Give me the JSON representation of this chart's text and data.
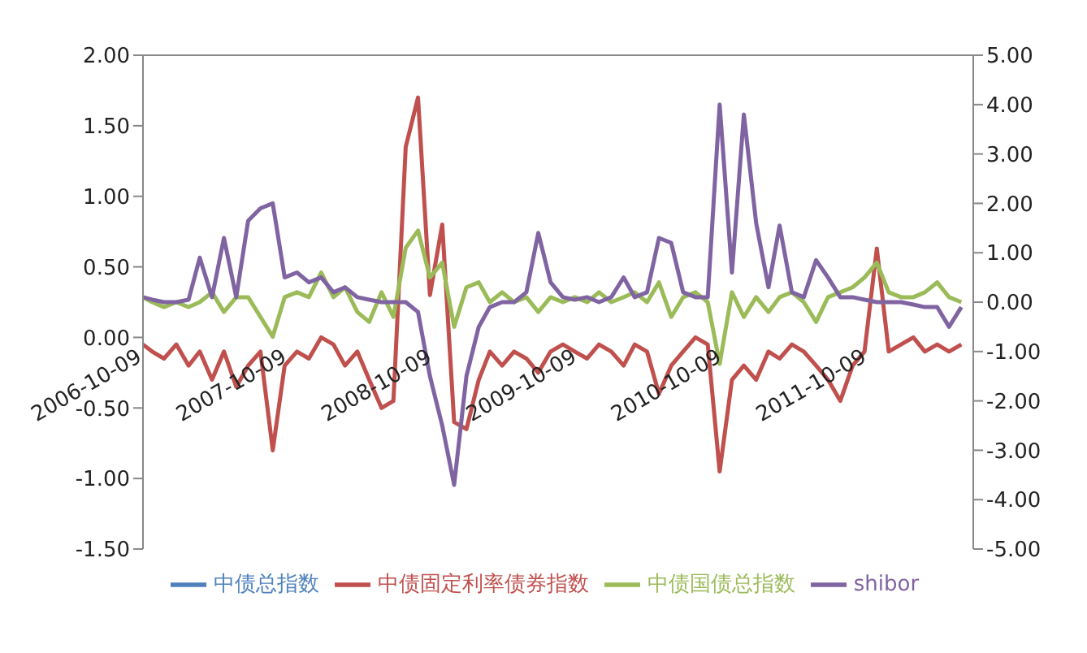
{
  "chart_data": {
    "type": "line",
    "x": [
      "2006-10-09",
      "2006-11",
      "2006-12",
      "2007-01",
      "2007-02",
      "2007-03",
      "2007-04",
      "2007-05",
      "2007-06",
      "2007-07",
      "2007-08",
      "2007-09",
      "2007-10",
      "2007-11",
      "2007-12",
      "2008-01",
      "2008-02",
      "2008-03",
      "2008-04",
      "2008-05",
      "2008-06",
      "2008-07",
      "2008-08",
      "2008-09",
      "2008-10",
      "2008-11",
      "2008-12",
      "2009-01",
      "2009-02",
      "2009-03",
      "2009-04",
      "2009-05",
      "2009-06",
      "2009-07",
      "2009-08",
      "2009-09",
      "2009-10",
      "2009-11",
      "2009-12",
      "2010-01",
      "2010-02",
      "2010-03",
      "2010-04",
      "2010-05",
      "2010-06",
      "2010-07",
      "2010-08",
      "2010-09",
      "2010-10",
      "2010-11",
      "2010-12",
      "2011-01",
      "2011-02",
      "2011-03",
      "2011-04",
      "2011-05",
      "2011-06",
      "2011-07",
      "2011-08",
      "2011-09",
      "2011-10",
      "2011-11",
      "2011-12",
      "2012-01",
      "2012-02",
      "2012-03",
      "2012-04",
      "2012-05",
      "2012-06"
    ],
    "series": [
      {
        "name": "中债总指数",
        "color": "#4f81bd",
        "values": [
          null,
          null,
          null,
          null,
          null,
          null,
          null,
          null,
          null,
          null,
          null,
          null,
          null,
          null,
          null,
          null,
          null,
          null,
          null,
          null,
          null,
          null,
          null,
          null,
          null,
          null,
          null,
          null,
          null,
          null,
          null,
          null,
          null,
          null,
          null,
          null,
          null,
          null,
          null,
          null,
          null,
          null,
          null,
          null,
          null,
          null,
          null,
          null,
          null,
          null,
          null,
          null,
          null,
          null,
          null,
          null,
          null,
          null,
          null,
          null,
          null,
          null,
          null,
          null,
          null,
          null,
          null,
          null,
          null
        ]
      },
      {
        "name": "中债固定利率债券指数",
        "color": "#c0504d",
        "values": [
          -0.05,
          -0.1,
          -0.15,
          -0.05,
          -0.2,
          -0.1,
          -0.3,
          -0.1,
          -0.35,
          -0.2,
          -0.1,
          -0.8,
          -0.2,
          -0.1,
          -0.15,
          0,
          -0.05,
          -0.2,
          -0.1,
          -0.3,
          -0.5,
          -0.45,
          1.35,
          1.7,
          0.3,
          0.8,
          -0.6,
          -0.65,
          -0.3,
          -0.1,
          -0.2,
          -0.1,
          -0.15,
          -0.25,
          -0.1,
          -0.05,
          -0.1,
          -0.15,
          -0.05,
          -0.1,
          -0.2,
          -0.05,
          -0.1,
          -0.4,
          -0.2,
          -0.1,
          0,
          -0.05,
          -0.95,
          -0.3,
          -0.2,
          -0.3,
          -0.1,
          -0.15,
          -0.05,
          -0.1,
          -0.2,
          -0.3,
          -0.45,
          -0.2,
          -0.1,
          0.63,
          -0.1,
          -0.05,
          0,
          -0.1,
          -0.05,
          -0.1,
          -0.05
        ]
      },
      {
        "name": "中债国债总指数",
        "color": "#9bbb59",
        "axis": "y2",
        "values": [
          0.1,
          0,
          -0.1,
          0,
          -0.1,
          0,
          0.2,
          -0.2,
          0.1,
          0.1,
          -0.3,
          -0.7,
          0.1,
          0.2,
          0.1,
          0.6,
          0.1,
          0.3,
          -0.2,
          -0.4,
          0.2,
          -0.3,
          1.1,
          1.45,
          0.5,
          0.8,
          -0.5,
          0.3,
          0.4,
          0,
          0.2,
          0,
          0.1,
          -0.2,
          0.1,
          0,
          0.1,
          0,
          0.2,
          0,
          0.1,
          0.2,
          0,
          0.4,
          -0.3,
          0.1,
          0.2,
          0,
          -1.25,
          0.2,
          -0.3,
          0.1,
          -0.2,
          0.1,
          0.2,
          0,
          -0.4,
          0.1,
          0.2,
          0.3,
          0.5,
          0.8,
          0.2,
          0.1,
          0.1,
          0.2,
          0.4,
          0.1,
          0
        ]
      },
      {
        "name": "shibor",
        "color": "#8064a2",
        "axis": "y2",
        "values": [
          0.1,
          0.05,
          0,
          0,
          0.05,
          0.9,
          0.1,
          1.3,
          0.1,
          1.65,
          1.9,
          2.0,
          0.5,
          0.6,
          0.4,
          0.5,
          0.2,
          0.3,
          0.1,
          0.05,
          0,
          0,
          0,
          -0.2,
          -1.5,
          -2.5,
          -3.7,
          -1.5,
          -0.5,
          -0.1,
          0,
          0,
          0.2,
          1.4,
          0.4,
          0.1,
          0.05,
          0.1,
          0,
          0.1,
          0.5,
          0.1,
          0.2,
          1.3,
          1.2,
          0.2,
          0.1,
          0.1,
          4.0,
          0.6,
          3.8,
          1.6,
          0.3,
          1.55,
          0.2,
          0.1,
          0.85,
          0.5,
          0.1,
          0.1,
          0.05,
          0,
          0,
          0,
          -0.05,
          -0.1,
          -0.1,
          -0.5,
          -0.1
        ]
      }
    ],
    "xlim": [
      "2006-10-09",
      "2012-07"
    ],
    "xticks": [
      "2006-10-09",
      "2007-10-09",
      "2008-10-09",
      "2009-10-09",
      "2010-10-09",
      "2011-10-09"
    ],
    "ylim": [
      -1.5,
      2
    ],
    "yticks": [
      {
        "value": -1.5,
        "label": "-1.50"
      },
      {
        "value": -1,
        "label": "-1.00"
      },
      {
        "value": -0.5,
        "label": "-0.50"
      },
      {
        "value": 0,
        "label": "0.00"
      },
      {
        "value": 0.5,
        "label": "0.50"
      },
      {
        "value": 1,
        "label": "1.00"
      },
      {
        "value": 1.5,
        "label": "1.50"
      },
      {
        "value": 2,
        "label": "2.00"
      }
    ],
    "y2lim": [
      -5,
      5
    ],
    "y2ticks": [
      {
        "value": -5,
        "label": "-5.00"
      },
      {
        "value": -4,
        "label": "-4.00"
      },
      {
        "value": -3,
        "label": "-3.00"
      },
      {
        "value": -2,
        "label": "-2.00"
      },
      {
        "value": -1,
        "label": "-1.00"
      },
      {
        "value": 0,
        "label": "0.00"
      },
      {
        "value": 1,
        "label": "1.00"
      },
      {
        "value": 2,
        "label": "2.00"
      },
      {
        "value": 3,
        "label": "3.00"
      },
      {
        "value": 4,
        "label": "4.00"
      },
      {
        "value": 5,
        "label": "5.00"
      }
    ],
    "grid": false,
    "legend": "bottom",
    "marker": "none",
    "line_style": "solid"
  }
}
